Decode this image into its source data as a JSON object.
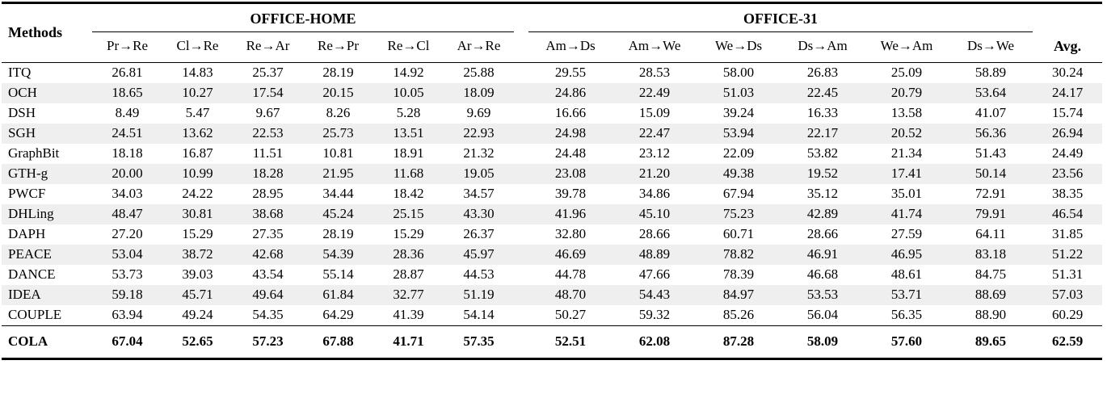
{
  "table": {
    "methods_header": "Methods",
    "avg_header": "Avg.",
    "groups": [
      {
        "label": "OFFICE-HOME",
        "columns": [
          "Pr→Re",
          "Cl→Re",
          "Re→Ar",
          "Re→Pr",
          "Re→Cl",
          "Ar→Re"
        ]
      },
      {
        "label": "OFFICE-31",
        "columns": [
          "Am→Ds",
          "Am→We",
          "We→Ds",
          "Ds→Am",
          "We→Am",
          "Ds→We"
        ]
      }
    ],
    "rows": [
      {
        "method": "ITQ",
        "bold": false,
        "values": [
          "26.81",
          "14.83",
          "25.37",
          "28.19",
          "14.92",
          "25.88",
          "29.55",
          "28.53",
          "58.00",
          "26.83",
          "25.09",
          "58.89",
          "30.24"
        ]
      },
      {
        "method": "OCH",
        "bold": false,
        "values": [
          "18.65",
          "10.27",
          "17.54",
          "20.15",
          "10.05",
          "18.09",
          "24.86",
          "22.49",
          "51.03",
          "22.45",
          "20.79",
          "53.64",
          "24.17"
        ]
      },
      {
        "method": "DSH",
        "bold": false,
        "values": [
          "8.49",
          "5.47",
          "9.67",
          "8.26",
          "5.28",
          "9.69",
          "16.66",
          "15.09",
          "39.24",
          "16.33",
          "13.58",
          "41.07",
          "15.74"
        ]
      },
      {
        "method": "SGH",
        "bold": false,
        "values": [
          "24.51",
          "13.62",
          "22.53",
          "25.73",
          "13.51",
          "22.93",
          "24.98",
          "22.47",
          "53.94",
          "22.17",
          "20.52",
          "56.36",
          "26.94"
        ]
      },
      {
        "method": "GraphBit",
        "bold": false,
        "values": [
          "18.18",
          "16.87",
          "11.51",
          "10.81",
          "18.91",
          "21.32",
          "24.48",
          "23.12",
          "22.09",
          "53.82",
          "21.34",
          "51.43",
          "24.49"
        ]
      },
      {
        "method": "GTH-g",
        "bold": false,
        "values": [
          "20.00",
          "10.99",
          "18.28",
          "21.95",
          "11.68",
          "19.05",
          "23.08",
          "21.20",
          "49.38",
          "19.52",
          "17.41",
          "50.14",
          "23.56"
        ]
      },
      {
        "method": "PWCF",
        "bold": false,
        "values": [
          "34.03",
          "24.22",
          "28.95",
          "34.44",
          "18.42",
          "34.57",
          "39.78",
          "34.86",
          "67.94",
          "35.12",
          "35.01",
          "72.91",
          "38.35"
        ]
      },
      {
        "method": "DHLing",
        "bold": false,
        "values": [
          "48.47",
          "30.81",
          "38.68",
          "45.24",
          "25.15",
          "43.30",
          "41.96",
          "45.10",
          "75.23",
          "42.89",
          "41.74",
          "79.91",
          "46.54"
        ]
      },
      {
        "method": "DAPH",
        "bold": false,
        "values": [
          "27.20",
          "15.29",
          "27.35",
          "28.19",
          "15.29",
          "26.37",
          "32.80",
          "28.66",
          "60.71",
          "28.66",
          "27.59",
          "64.11",
          "31.85"
        ]
      },
      {
        "method": "PEACE",
        "bold": false,
        "values": [
          "53.04",
          "38.72",
          "42.68",
          "54.39",
          "28.36",
          "45.97",
          "46.69",
          "48.89",
          "78.82",
          "46.91",
          "46.95",
          "83.18",
          "51.22"
        ]
      },
      {
        "method": "DANCE",
        "bold": false,
        "values": [
          "53.73",
          "39.03",
          "43.54",
          "55.14",
          "28.87",
          "44.53",
          "44.78",
          "47.66",
          "78.39",
          "46.68",
          "48.61",
          "84.75",
          "51.31"
        ]
      },
      {
        "method": "IDEA",
        "bold": false,
        "values": [
          "59.18",
          "45.71",
          "49.64",
          "61.84",
          "32.77",
          "51.19",
          "48.70",
          "54.43",
          "84.97",
          "53.53",
          "53.71",
          "88.69",
          "57.03"
        ]
      },
      {
        "method": "COUPLE",
        "bold": false,
        "values": [
          "63.94",
          "49.24",
          "54.35",
          "64.29",
          "41.39",
          "54.14",
          "50.27",
          "59.32",
          "85.26",
          "56.04",
          "56.35",
          "88.90",
          "60.29"
        ]
      },
      {
        "method": "COLA",
        "bold": true,
        "values": [
          "67.04",
          "52.65",
          "57.23",
          "67.88",
          "41.71",
          "57.35",
          "52.51",
          "62.08",
          "87.28",
          "58.09",
          "57.60",
          "89.65",
          "62.59"
        ]
      }
    ],
    "colors": {
      "stripe": "#efefef",
      "text": "#000000",
      "rule": "#000000",
      "background": "#ffffff"
    }
  }
}
